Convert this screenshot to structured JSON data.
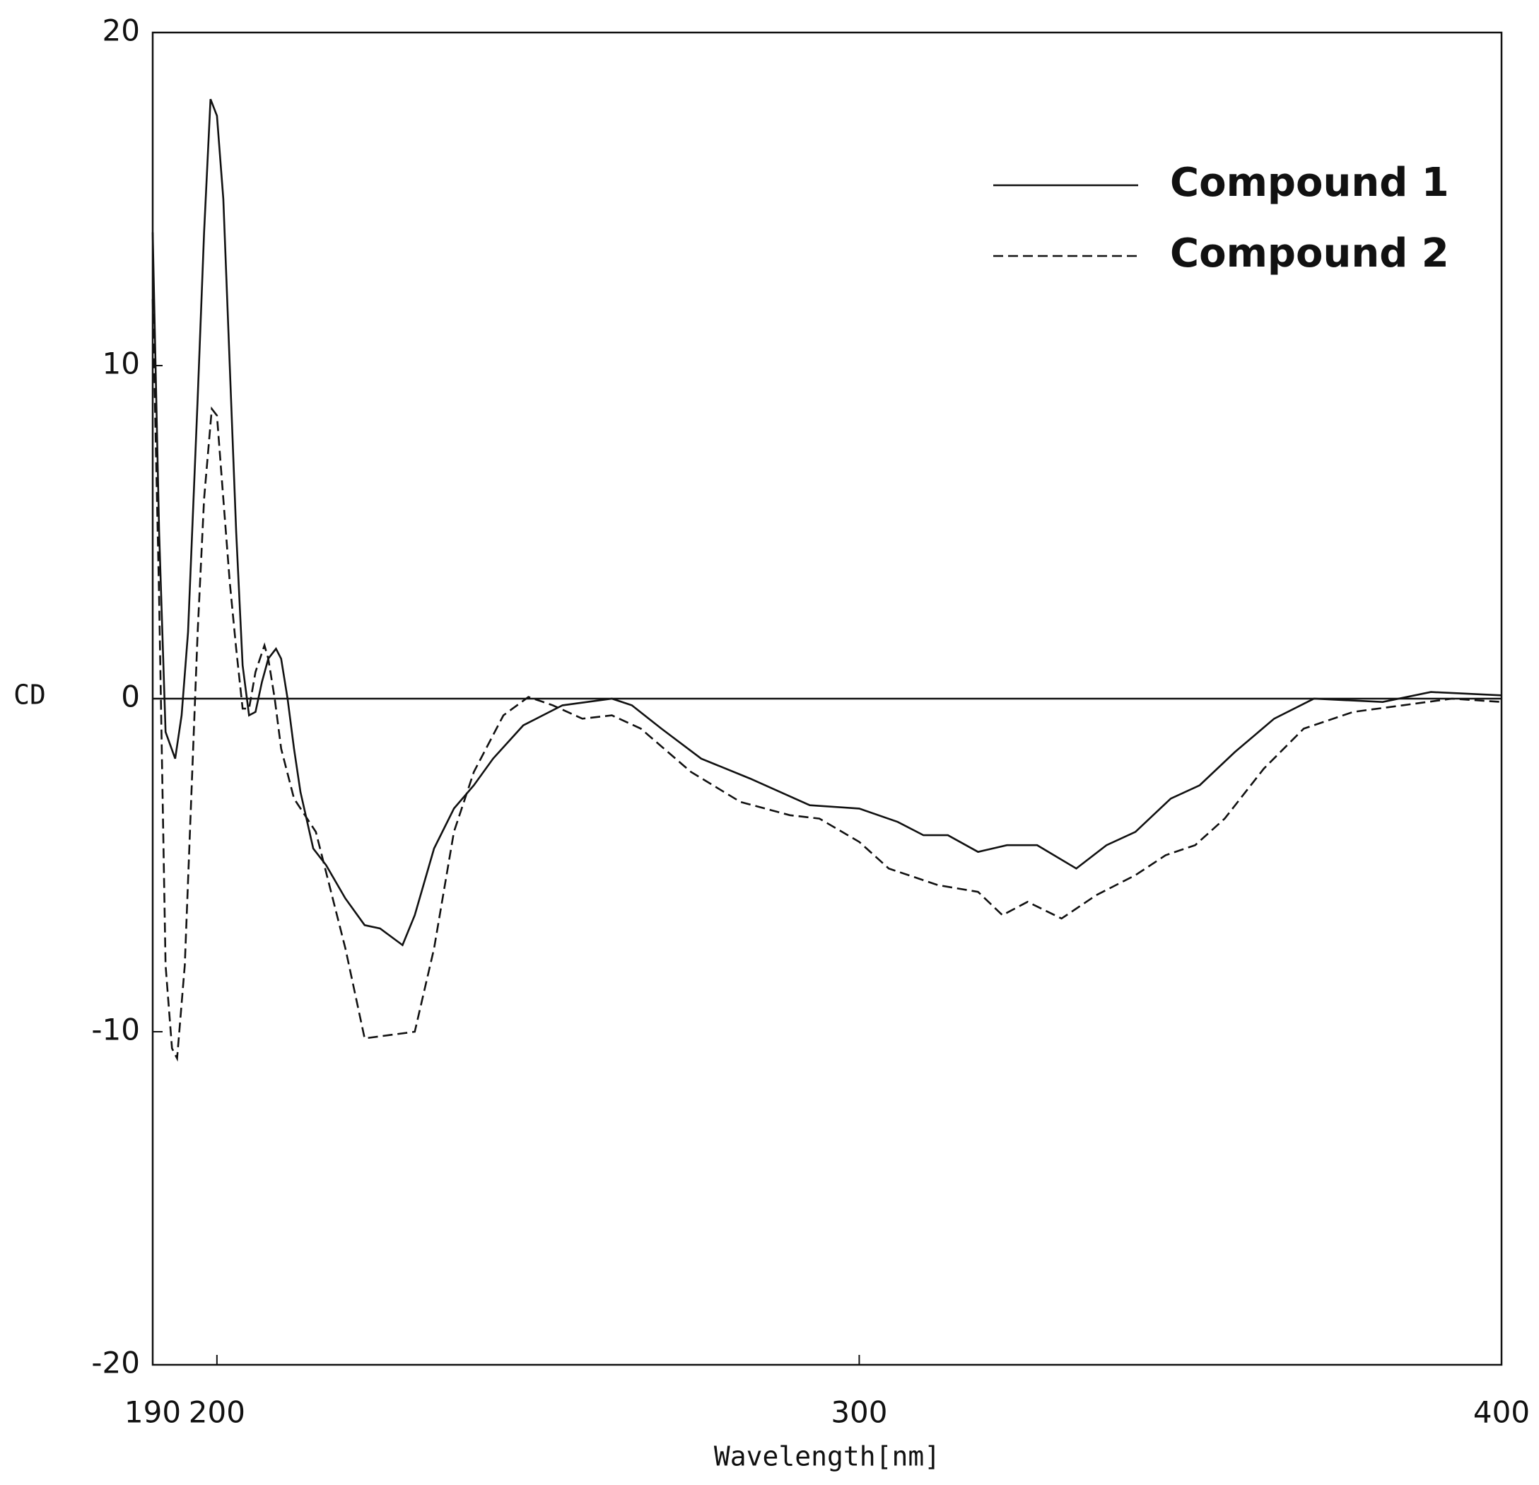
{
  "chart_data": {
    "type": "line",
    "xlabel": "Wavelength[nm]",
    "ylabel": "CD",
    "xlim": [
      190,
      400
    ],
    "ylim": [
      -20,
      20
    ],
    "xticks": [
      190,
      200,
      300,
      400
    ],
    "yticks": [
      -20,
      -10,
      0,
      10,
      20
    ],
    "legend": "upper right",
    "series": [
      {
        "name": "Compound 1",
        "color": "#111111",
        "line_style": "solid",
        "x": [
          190,
          191,
          192,
          193.5,
          194.5,
          195.5,
          197,
          198,
          199,
          200,
          201,
          202,
          203,
          204,
          205,
          206,
          207,
          208,
          209.2,
          210,
          211,
          212,
          213,
          215,
          217,
          220,
          223,
          225.4,
          228.9,
          230.8,
          233.8,
          236.9,
          240,
          243,
          247.7,
          253.8,
          261.5,
          264.6,
          269.2,
          275.4,
          283,
          292.3,
          300,
          306,
          310,
          313.8,
          318.5,
          323,
          327.7,
          333.8,
          338.5,
          343,
          348.5,
          353,
          358.5,
          364.6,
          370.8,
          381.5,
          389,
          400
        ],
        "values": [
          14,
          5,
          -1,
          -1.8,
          -0.5,
          2,
          9,
          14,
          18,
          17.5,
          15,
          10,
          5,
          1,
          -0.5,
          -0.4,
          0.5,
          1.2,
          1.5,
          1.2,
          0,
          -1.5,
          -2.8,
          -4.5,
          -5,
          -6,
          -6.8,
          -6.9,
          -7.4,
          -6.5,
          -4.5,
          -3.3,
          -2.6,
          -1.8,
          -0.8,
          -0.2,
          0,
          -0.2,
          -0.9,
          -1.8,
          -2.4,
          -3.2,
          -3.3,
          -3.7,
          -4.1,
          -4.1,
          -4.6,
          -4.4,
          -4.4,
          -5.1,
          -4.4,
          -4,
          -3,
          -2.6,
          -1.6,
          -0.6,
          0,
          -0.1,
          0.2,
          0.1
        ]
      },
      {
        "name": "Compound 2",
        "color": "#111111",
        "line_style": "dashed",
        "x": [
          190,
          191,
          192,
          193,
          193.8,
          195,
          196,
          197,
          198,
          199.2,
          200,
          201,
          202,
          203,
          204,
          205,
          206,
          207.4,
          208,
          209,
          210,
          212,
          215.4,
          220,
          223,
          226.9,
          230.8,
          233.8,
          236.9,
          240,
          244.6,
          248.5,
          252.3,
          256.9,
          261.5,
          266,
          273.8,
          281.5,
          289.2,
          293.8,
          300,
          304.6,
          312.3,
          318.5,
          322.3,
          326.2,
          331.5,
          336.9,
          343,
          347.7,
          352.3,
          356.9,
          363,
          369.2,
          376.9,
          384.6,
          392.3,
          400
        ],
        "values": [
          12,
          3,
          -8,
          -10.5,
          -10.8,
          -8,
          -3,
          2,
          6,
          8.7,
          8.5,
          6,
          3.5,
          1.5,
          -0.3,
          -0.3,
          0.8,
          1.6,
          1.2,
          0,
          -1.5,
          -3,
          -4,
          -7.5,
          -10.2,
          -10.1,
          -10,
          -7.5,
          -4,
          -2.2,
          -0.5,
          0.05,
          -0.2,
          -0.6,
          -0.5,
          -0.9,
          -2.2,
          -3.1,
          -3.5,
          -3.6,
          -4.3,
          -5.1,
          -5.6,
          -5.8,
          -6.5,
          -6.1,
          -6.6,
          -5.9,
          -5.3,
          -4.7,
          -4.4,
          -3.6,
          -2.1,
          -0.9,
          -0.4,
          -0.2,
          0,
          -0.1
        ]
      }
    ]
  }
}
